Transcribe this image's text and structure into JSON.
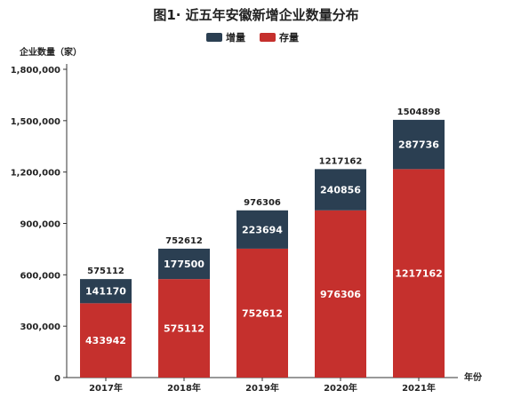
{
  "chart_data": {
    "type": "bar",
    "stacked": true,
    "title": "图1· 近五年安徽新增企业数量分布",
    "ylabel": "企业数量（家）",
    "xlabel": "年份",
    "categories": [
      "2017年",
      "2018年",
      "2019年",
      "2020年",
      "2021年"
    ],
    "series": [
      {
        "name": "存量",
        "color": "#c5302d",
        "values": [
          433942,
          575112,
          752612,
          976306,
          1217162
        ]
      },
      {
        "name": "增量",
        "color": "#2b3f52",
        "values": [
          141170,
          177500,
          223694,
          240856,
          287736
        ]
      }
    ],
    "totals": [
      575112,
      752612,
      976306,
      1217162,
      1504898
    ],
    "ylim": [
      0,
      1800000
    ],
    "yticks": [
      0,
      300000,
      600000,
      900000,
      1200000,
      1500000,
      1800000
    ],
    "ytick_labels": [
      "0",
      "300,000",
      "600,000",
      "900,000",
      "1,200,000",
      "1,500,000",
      "1,800,000"
    ],
    "legend_order": [
      "增量",
      "存量"
    ],
    "legend_position": "top-center",
    "grid": false
  }
}
